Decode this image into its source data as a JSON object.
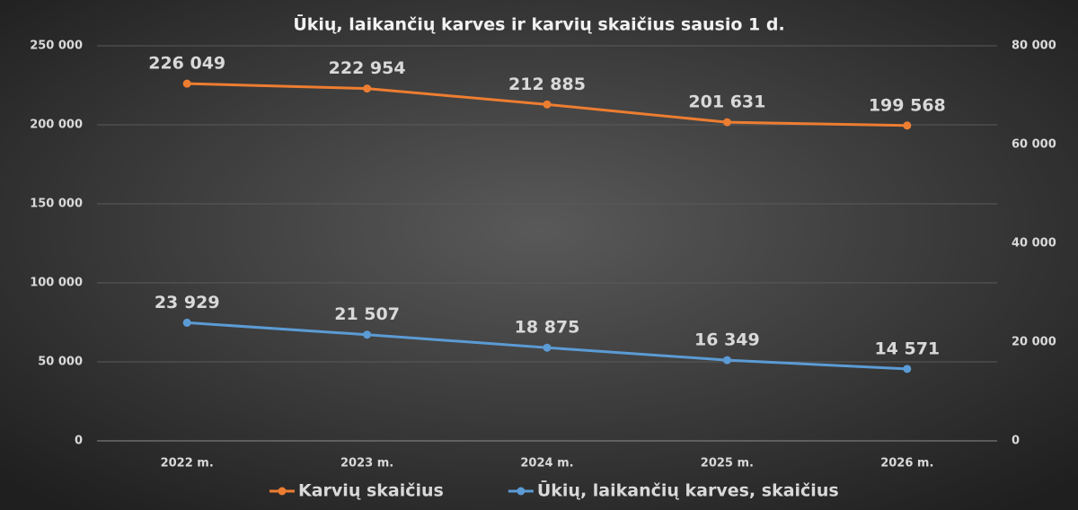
{
  "chart_data": {
    "type": "line",
    "title": "Ūkių, laikančių karves ir karvių skaičius sausio 1 d.",
    "categories": [
      "2022 m.",
      "2023 m.",
      "2024 m.",
      "2025 m.",
      "2026 m."
    ],
    "series": [
      {
        "name": "Karvių skaičius",
        "color": "#ed7d31",
        "values": [
          226049,
          222954,
          212885,
          201631,
          199568
        ],
        "value_labels": [
          "226 049",
          "222 954",
          "212 885",
          "201 631",
          "199 568"
        ]
      },
      {
        "name": "Ūkių, laikančių karves, skaičius",
        "color": "#5b9bd5",
        "axis": "y2",
        "values": [
          23929,
          21507,
          18875,
          16349,
          14571
        ],
        "value_labels": [
          "23 929",
          "21 507",
          "18 875",
          "16 349",
          "14 571"
        ]
      }
    ],
    "ylim": [
      0,
      250000
    ],
    "yticks": [
      0,
      {
        "value": 50000,
        "label": "50 000"
      },
      {
        "value": 100000,
        "label": "100 000"
      },
      {
        "value": 150000,
        "label": "150 000"
      },
      {
        "value": 200000,
        "label": "200 000"
      },
      {
        "value": 250000,
        "label": "250 000"
      }
    ],
    "y2lim": [
      0,
      80000
    ],
    "y2ticks": [
      0,
      {
        "value": 20000,
        "label": "20 000"
      },
      {
        "value": 40000,
        "label": "40 000"
      },
      {
        "value": 60000,
        "label": "60 000"
      },
      {
        "value": 80000,
        "label": "80 000"
      }
    ],
    "grid": true,
    "legend": "bottom"
  }
}
